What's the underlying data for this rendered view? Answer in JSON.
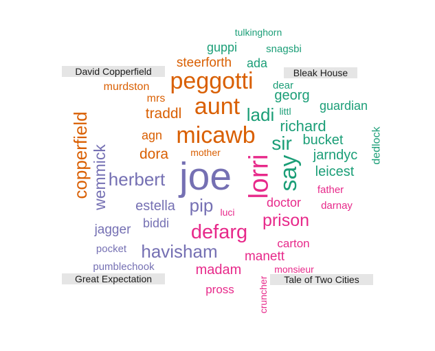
{
  "chart_data": {
    "type": "comparison word cloud",
    "colors": {
      "David Copperfield": "#d95f02",
      "Bleak House": "#1b9e77",
      "Great Expectation": "#7570b3",
      "Tale of Two Cities": "#e7298a"
    },
    "groups": [
      "David Copperfield",
      "Bleak House",
      "Great Expectation",
      "Tale of Two Cities"
    ],
    "words": [
      {
        "word": "tulkinghorn",
        "group": "Bleak House",
        "size": 15
      },
      {
        "word": "guppi",
        "group": "Bleak House",
        "size": 19
      },
      {
        "word": "snagsbi",
        "group": "Bleak House",
        "size": 16
      },
      {
        "word": "ada",
        "group": "Bleak House",
        "size": 19
      },
      {
        "word": "dear",
        "group": "Bleak House",
        "size": 16
      },
      {
        "word": "georg",
        "group": "Bleak House",
        "size": 21
      },
      {
        "word": "ladi",
        "group": "Bleak House",
        "size": 27
      },
      {
        "word": "littl",
        "group": "Bleak House",
        "size": 15
      },
      {
        "word": "guardian",
        "group": "Bleak House",
        "size": 19
      },
      {
        "word": "richard",
        "group": "Bleak House",
        "size": 23
      },
      {
        "word": "sir",
        "group": "Bleak House",
        "size": 29
      },
      {
        "word": "bucket",
        "group": "Bleak House",
        "size": 21
      },
      {
        "word": "jarndyc",
        "group": "Bleak House",
        "size": 21
      },
      {
        "word": "dedlock",
        "group": "Bleak House",
        "size": 17
      },
      {
        "word": "say",
        "group": "Bleak House",
        "size": 36
      },
      {
        "word": "leicest",
        "group": "Bleak House",
        "size": 21
      },
      {
        "word": "steerforth",
        "group": "David Copperfield",
        "size": 20
      },
      {
        "word": "peggotti",
        "group": "David Copperfield",
        "size": 36
      },
      {
        "word": "murdston",
        "group": "David Copperfield",
        "size": 17
      },
      {
        "word": "mrs",
        "group": "David Copperfield",
        "size": 17
      },
      {
        "word": "aunt",
        "group": "David Copperfield",
        "size": 36
      },
      {
        "word": "traddl",
        "group": "David Copperfield",
        "size": 22
      },
      {
        "word": "agn",
        "group": "David Copperfield",
        "size": 19
      },
      {
        "word": "micawb",
        "group": "David Copperfield",
        "size": 36
      },
      {
        "word": "dora",
        "group": "David Copperfield",
        "size": 22
      },
      {
        "word": "mother",
        "group": "David Copperfield",
        "size": 15
      },
      {
        "word": "copperfield",
        "group": "David Copperfield",
        "size": 27
      },
      {
        "word": "wemmick",
        "group": "Great Expectation",
        "size": 24
      },
      {
        "word": "herbert",
        "group": "Great Expectation",
        "size": 27
      },
      {
        "word": "joe",
        "group": "Great Expectation",
        "size": 60
      },
      {
        "word": "estella",
        "group": "Great Expectation",
        "size": 21
      },
      {
        "word": "pip",
        "group": "Great Expectation",
        "size": 27
      },
      {
        "word": "jagger",
        "group": "Great Expectation",
        "size": 20
      },
      {
        "word": "biddi",
        "group": "Great Expectation",
        "size": 19
      },
      {
        "word": "pocket",
        "group": "Great Expectation",
        "size": 16
      },
      {
        "word": "havisham",
        "group": "Great Expectation",
        "size": 27
      },
      {
        "word": "pumblechook",
        "group": "Great Expectation",
        "size": 16
      },
      {
        "word": "lorri",
        "group": "Tale of Two Cities",
        "size": 41
      },
      {
        "word": "father",
        "group": "Tale of Two Cities",
        "size": 16
      },
      {
        "word": "luci",
        "group": "Tale of Two Cities",
        "size": 15
      },
      {
        "word": "doctor",
        "group": "Tale of Two Cities",
        "size": 19
      },
      {
        "word": "darnay",
        "group": "Tale of Two Cities",
        "size": 16
      },
      {
        "word": "defarg",
        "group": "Tale of Two Cities",
        "size": 31
      },
      {
        "word": "prison",
        "group": "Tale of Two Cities",
        "size": 26
      },
      {
        "word": "carton",
        "group": "Tale of Two Cities",
        "size": 18
      },
      {
        "word": "manett",
        "group": "Tale of Two Cities",
        "size": 20
      },
      {
        "word": "madam",
        "group": "Tale of Two Cities",
        "size": 21
      },
      {
        "word": "monsieur",
        "group": "Tale of Two Cities",
        "size": 15
      },
      {
        "word": "pross",
        "group": "Tale of Two Cities",
        "size": 18
      },
      {
        "word": "cruncher",
        "group": "Tale of Two Cities",
        "size": 15
      }
    ]
  }
}
